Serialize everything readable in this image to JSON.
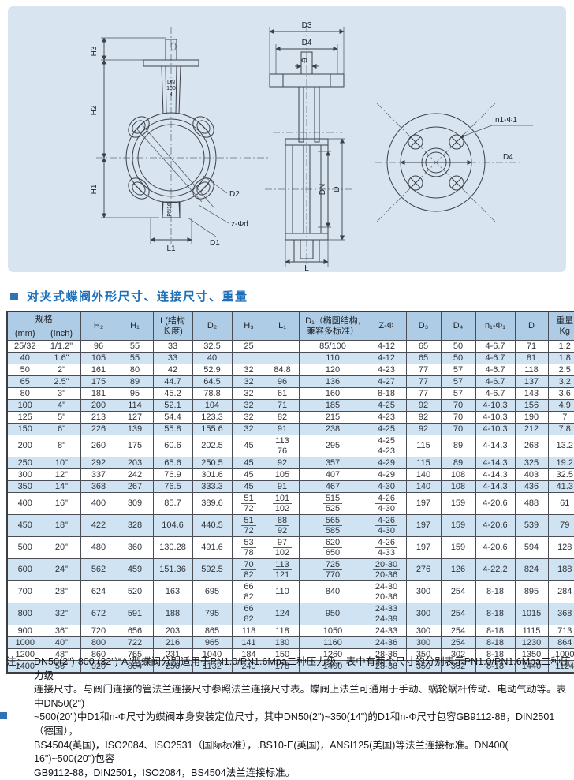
{
  "section_title": "对夹式蝶阀外形尺寸、连接尺寸、重量",
  "diagram": {
    "front": {
      "h3": "H3",
      "h2": "H2",
      "h1": "H1",
      "l1": "L1",
      "d2": "D2",
      "z_phi_d": "z-Φd",
      "d1": "D1",
      "dn": "DN",
      "dn_size": "100",
      "dn_4": "4",
      "pn": "PN16"
    },
    "section": {
      "d3": "D3",
      "d4": "D4",
      "phi": "Φ",
      "dn": "DN",
      "d": "D",
      "l": "L"
    },
    "flange": {
      "n1_phi1": "n1-Φ1",
      "d4": "D4"
    }
  },
  "table": {
    "header": {
      "spec_group": {
        "label": "规格",
        "sub": [
          "(mm)",
          "(Inch)"
        ]
      },
      "columns": [
        [
          "H₂"
        ],
        [
          "H₁"
        ],
        [
          "L(结构",
          "长度)"
        ],
        [
          "D₂"
        ],
        [
          "H₃"
        ],
        [
          "L₁"
        ],
        [
          "D₁（椭圆结构,",
          "兼容多标准）"
        ],
        [
          "Z-Φ"
        ],
        [
          "D₃"
        ],
        [
          "D₄"
        ],
        [
          "n₁-Φ₁"
        ],
        [
          "D"
        ],
        [
          "重量",
          "Kg"
        ]
      ]
    },
    "rows": [
      [
        "25/32",
        "1/1.2\"",
        "96",
        "55",
        "33",
        "32.5",
        "25",
        "",
        "85/100",
        "4-12",
        "65",
        "50",
        "4-6.7",
        "71",
        "1.2"
      ],
      [
        "40",
        "1.6\"",
        "105",
        "55",
        "33",
        "40",
        "",
        "",
        "110",
        "4-12",
        "65",
        "50",
        "4-6.7",
        "81",
        "1.8"
      ],
      [
        "50",
        "2\"",
        "161",
        "80",
        "42",
        "52.9",
        "32",
        "84.8",
        "120",
        "4-23",
        "77",
        "57",
        "4-6.7",
        "118",
        "2.5"
      ],
      [
        "65",
        "2.5\"",
        "175",
        "89",
        "44.7",
        "64.5",
        "32",
        "96",
        "136",
        "4-27",
        "77",
        "57",
        "4-6.7",
        "137",
        "3.2"
      ],
      [
        "80",
        "3\"",
        "181",
        "95",
        "45.2",
        "78.8",
        "32",
        "61",
        "160",
        "8-18",
        "77",
        "57",
        "4-6.7",
        "143",
        "3.6"
      ],
      [
        "100",
        "4\"",
        "200",
        "114",
        "52.1",
        "104",
        "32",
        "71",
        "185",
        "4-25",
        "92",
        "70",
        "4-10.3",
        "156",
        "4.9"
      ],
      [
        "125",
        "5\"",
        "213",
        "127",
        "54.4",
        "123.3",
        "32",
        "82",
        "215",
        "4-23",
        "92",
        "70",
        "4-10.3",
        "190",
        "7"
      ],
      [
        "150",
        "6\"",
        "226",
        "139",
        "55.8",
        "155.6",
        "32",
        "91",
        "238",
        "4-25",
        "92",
        "70",
        "4-10.3",
        "212",
        "7.8"
      ],
      [
        "200",
        "8\"",
        "260",
        "175",
        "60.6",
        "202.5",
        "45",
        [
          "113",
          "76"
        ],
        "295",
        [
          "4-25",
          "4-23"
        ],
        "115",
        "89",
        "4-14.3",
        "268",
        "13.2"
      ],
      [
        "250",
        "10\"",
        "292",
        "203",
        "65.6",
        "250.5",
        "45",
        "92",
        "357",
        "4-29",
        "115",
        "89",
        "4-14.3",
        "325",
        "19.2"
      ],
      [
        "300",
        "12\"",
        "337",
        "242",
        "76.9",
        "301.6",
        "45",
        "105",
        "407",
        "4-29",
        "140",
        "108",
        "4-14.3",
        "403",
        "32.5"
      ],
      [
        "350",
        "14\"",
        "368",
        "267",
        "76.5",
        "333.3",
        "45",
        "91",
        "467",
        "4-30",
        "140",
        "108",
        "4-14.3",
        "436",
        "41.3"
      ],
      [
        "400",
        "16\"",
        "400",
        "309",
        "85.7",
        "389.6",
        [
          "51",
          "72"
        ],
        [
          "101",
          "102"
        ],
        [
          "515",
          "525"
        ],
        [
          "4-26",
          "4-30"
        ],
        "197",
        "159",
        "4-20.6",
        "488",
        "61"
      ],
      [
        "450",
        "18\"",
        "422",
        "328",
        "104.6",
        "440.5",
        [
          "51",
          "72"
        ],
        [
          "88",
          "92"
        ],
        [
          "565",
          "585"
        ],
        [
          "4-26",
          "4-30"
        ],
        "197",
        "159",
        "4-20.6",
        "539",
        "79"
      ],
      [
        "500",
        "20\"",
        "480",
        "360",
        "130.28",
        "491.6",
        [
          "53",
          "78"
        ],
        [
          "97",
          "102"
        ],
        [
          "620",
          "650"
        ],
        [
          "4-26",
          "4-33"
        ],
        "197",
        "159",
        "4-20.6",
        "594",
        "128"
      ],
      [
        "600",
        "24\"",
        "562",
        "459",
        "151.36",
        "592.5",
        [
          "70",
          "82"
        ],
        [
          "113",
          "121"
        ],
        [
          "725",
          "770"
        ],
        [
          "20-30",
          "20-36"
        ],
        "276",
        "126",
        "4-22.2",
        "824",
        "188"
      ],
      [
        "700",
        "28\"",
        "624",
        "520",
        "163",
        "695",
        [
          "66",
          "82"
        ],
        "110",
        "840",
        [
          "24-30",
          "20-36"
        ],
        "300",
        "254",
        "8-18",
        "895",
        "284"
      ],
      [
        "800",
        "32\"",
        "672",
        "591",
        "188",
        "795",
        [
          "66",
          "82"
        ],
        "124",
        "950",
        [
          "24-33",
          "24-39"
        ],
        "300",
        "254",
        "8-18",
        "1015",
        "368"
      ],
      [
        "900",
        "36\"",
        "720",
        "656",
        "203",
        "865",
        "118",
        "118",
        "1050",
        "24-33",
        "300",
        "254",
        "8-18",
        "1115",
        "713"
      ],
      [
        "1000",
        "40\"",
        "800",
        "722",
        "216",
        "965",
        "141",
        "130",
        "1160",
        "24-36",
        "300",
        "254",
        "8-18",
        "1230",
        "864"
      ],
      [
        "1200",
        "48\"",
        "860",
        "765",
        "231",
        "1040",
        "184",
        "150",
        "1260",
        "28-36",
        "350",
        "302",
        "8-18",
        "1350",
        "1000"
      ],
      [
        "1400",
        "56\"",
        "920",
        "804",
        "250",
        "1132",
        "240",
        "178",
        "1400",
        "28-36",
        "350",
        "302",
        "8-18",
        "1440",
        "1124"
      ]
    ]
  },
  "note": {
    "prefix": "注：",
    "lines": [
      "DN50(2\")-800 (32\")“A”型蝶阀分别适用于PN1.0/PN1.6Mpa二种压力级，表中有两个尺寸的分别表示PN1.0/PN1.6Mpa二种压力级",
      "连接尺寸。与阀门连接的管法兰连接尺寸参照法兰连接尺寸表。蝶阀上法兰可通用于手动、蜗轮蜗杆传动、电动气动等。表中DN50(2\")",
      "~500(20\")中D1和n-Φ尺寸为蝶阀本身安装定位尺寸，其中DN50(2\")~350(14\")的D1和n-Φ尺寸包容GB9112-88，DIN2501（德国），",
      "BS4504(英国)，ISO2084、ISO2531（国际标准），.BS10-E(英国)，ANSI125(美国)等法兰连接标准。DN400( 16\")~500(20\")包容",
      "GB9112-88，DIN2501，ISO2084，BS4504法兰连接标准。"
    ]
  }
}
